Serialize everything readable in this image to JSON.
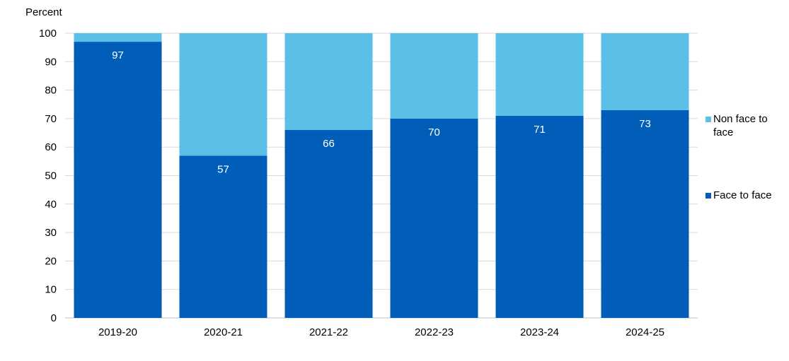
{
  "chart_data": {
    "type": "bar",
    "stacked": true,
    "ylabel": "Percent",
    "xlabel": "",
    "ylim": [
      0,
      100
    ],
    "yticks": [
      0,
      10,
      20,
      30,
      40,
      50,
      60,
      70,
      80,
      90,
      100
    ],
    "categories": [
      "2019-20",
      "2020-21",
      "2021-22",
      "2022-23",
      "2023-24",
      "2024-25"
    ],
    "series": [
      {
        "name": "Face to face",
        "values": [
          97,
          57,
          66,
          70,
          71,
          73
        ],
        "data_labels": [
          "97",
          "57",
          "66",
          "70",
          "71",
          "73"
        ],
        "color": "#005EB8"
      },
      {
        "name": "Non face to face",
        "values": [
          3,
          43,
          34,
          30,
          29,
          27
        ],
        "color": "#5BC0E8"
      }
    ],
    "legend": {
      "position": "right",
      "entries": [
        {
          "line1": "Non face to",
          "line2": "face",
          "color": "#5BC0E8"
        },
        {
          "line1": "Face to face",
          "line2": "",
          "color": "#005EB8"
        }
      ]
    },
    "grid": true
  }
}
